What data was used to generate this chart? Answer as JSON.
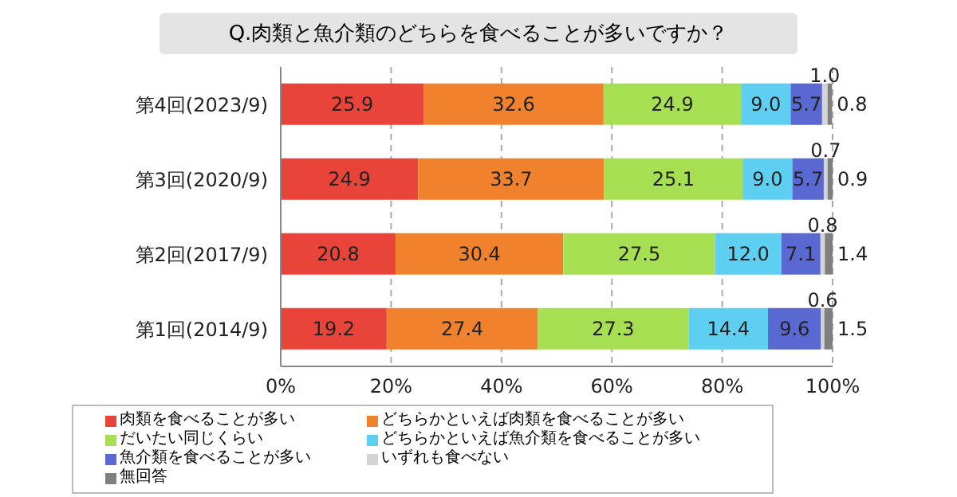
{
  "chart_data": {
    "type": "bar",
    "orientation": "horizontal",
    "stacked": true,
    "title": "Q.肉類と魚介類のどちらを食べることが多いですか？",
    "categories": [
      "第4回(2023/9)",
      "第3回(2020/9)",
      "第2回(2017/9)",
      "第1回(2014/9)"
    ],
    "series": [
      {
        "name": "肉類を食べることが多い",
        "color": "#e8443a",
        "values": [
          25.9,
          24.9,
          20.8,
          19.2
        ],
        "value_labels": [
          "25.9",
          "24.9",
          "20.8",
          "19.2"
        ]
      },
      {
        "name": "どちらかといえば肉類を食べることが多い",
        "color": "#f0822e",
        "values": [
          32.6,
          33.7,
          30.4,
          27.4
        ],
        "value_labels": [
          "32.6",
          "33.7",
          "30.4",
          "27.4"
        ]
      },
      {
        "name": "だいたい同じくらい",
        "color": "#a6e052",
        "values": [
          24.9,
          25.1,
          27.5,
          27.3
        ],
        "value_labels": [
          "24.9",
          "25.1",
          "27.5",
          "27.3"
        ]
      },
      {
        "name": "どちらかといえば魚介類を食べることが多い",
        "color": "#5ecff0",
        "values": [
          9.0,
          9.0,
          12.0,
          14.4
        ],
        "value_labels": [
          "9.0",
          "9.0",
          "12.0",
          "14.4"
        ]
      },
      {
        "name": "魚介類を食べることが多い",
        "color": "#5a68d2",
        "values": [
          5.7,
          5.7,
          7.1,
          9.6
        ],
        "value_labels": [
          "5.7",
          "5.7",
          "7.1",
          "9.6"
        ]
      },
      {
        "name": "いずれも食べない",
        "color": "#d4d4d4",
        "values": [
          1.0,
          0.7,
          0.8,
          0.6
        ],
        "value_labels": [
          "1.0",
          "0.7",
          "0.8",
          "0.6"
        ]
      },
      {
        "name": "無回答",
        "color": "#7f7f7f",
        "values": [
          0.8,
          0.9,
          1.4,
          1.5
        ],
        "value_labels": [
          "0.8",
          "0.9",
          "1.4",
          "1.5"
        ]
      }
    ],
    "xlim": [
      0,
      100
    ],
    "xticks": [
      {
        "value": 0,
        "label": "0%"
      },
      {
        "value": 20,
        "label": "20%"
      },
      {
        "value": 40,
        "label": "40%"
      },
      {
        "value": 60,
        "label": "60%"
      },
      {
        "value": 80,
        "label": "80%"
      },
      {
        "value": 100,
        "label": "100%"
      }
    ],
    "grid": "x",
    "legend": "bottom"
  }
}
